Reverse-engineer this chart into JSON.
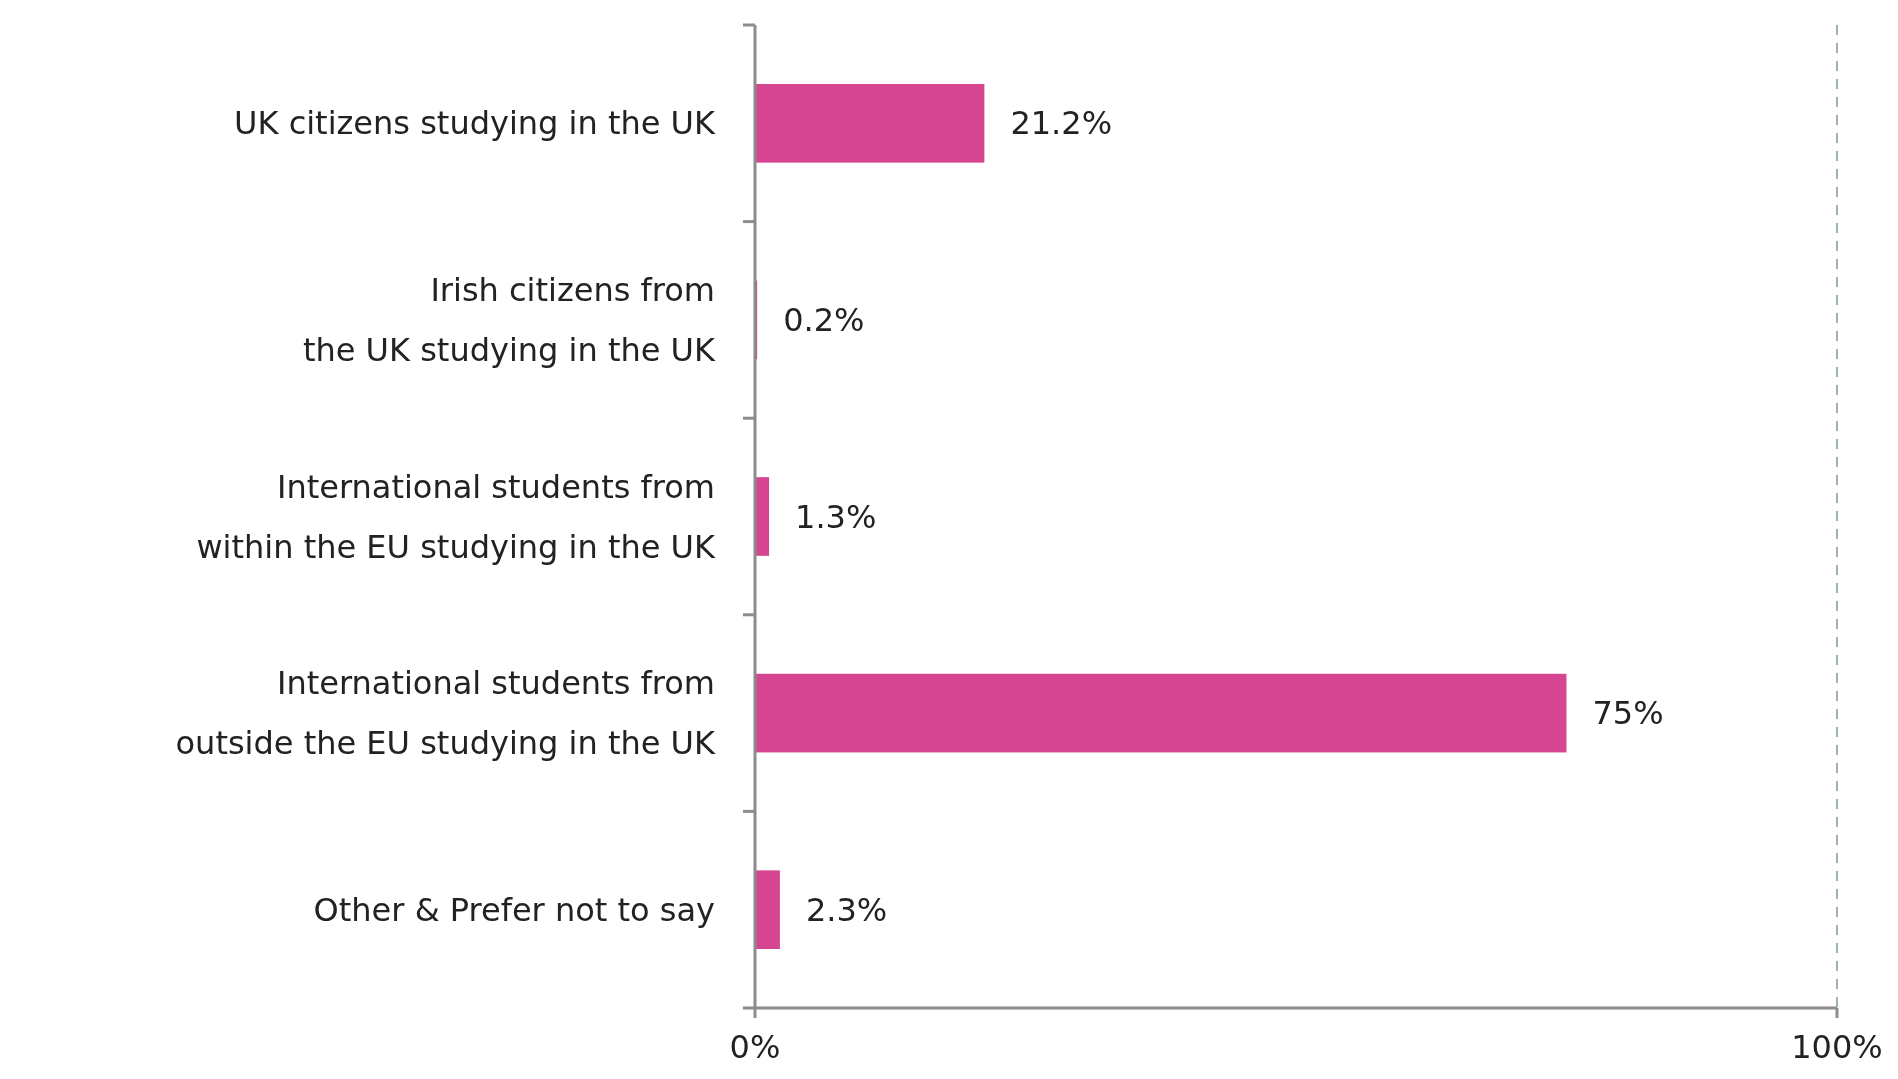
{
  "chart_data": {
    "type": "bar",
    "orientation": "horizontal",
    "categories": [
      "UK citizens studying in the UK",
      "Irish citizens from\nthe UK studying in the UK",
      "International students from\nwithin the EU studying in the UK",
      "International students from\noutside the EU studying in the UK",
      "Other & Prefer not to say"
    ],
    "values": [
      21.2,
      0.2,
      1.3,
      75,
      2.3
    ],
    "value_labels": [
      "21.2%",
      "0.2%",
      "1.3%",
      "75%",
      "2.3%"
    ],
    "color": "#d6458f",
    "xlim": [
      0,
      100
    ],
    "xticks": [
      {
        "value": 0,
        "label": "0%"
      },
      {
        "value": 100,
        "label": "100%"
      }
    ],
    "ref_lines": [
      {
        "axis": "x",
        "value": 100,
        "color": "#9fb3aa",
        "line_style": "dashed"
      }
    ]
  }
}
